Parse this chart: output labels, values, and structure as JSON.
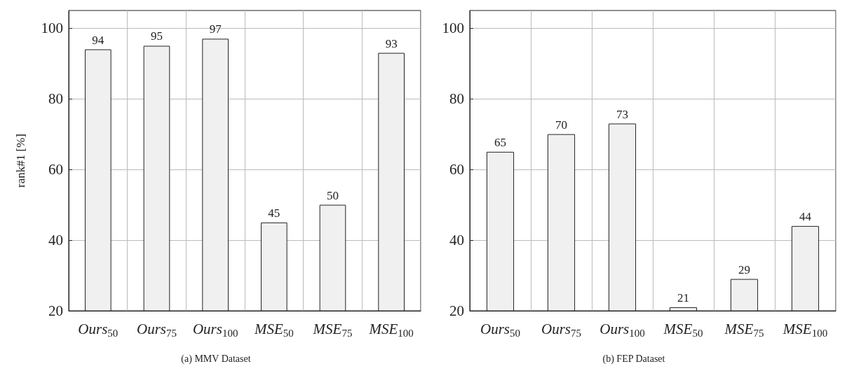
{
  "chart_data": [
    {
      "type": "bar",
      "title": "(a) MMV Dataset",
      "ylabel": "rank#1 [%]",
      "categories": [
        "Ours$_{50}$",
        "Ours$_{75}$",
        "Ours$_{100}$",
        "MSE$_{50}$",
        "MSE$_{75}$",
        "MSE$_{100}$"
      ],
      "values": [
        94,
        95,
        97,
        45,
        50,
        93
      ],
      "color": "#f0f0f0",
      "ylim": [
        20,
        105
      ],
      "yticks": [
        20,
        40,
        60,
        80,
        100
      ],
      "grid": true,
      "data_labels": true
    },
    {
      "type": "bar",
      "title": "(b) FEP Dataset",
      "categories": [
        "Ours$_{50}$",
        "Ours$_{75}$",
        "Ours$_{100}$",
        "MSE$_{50}$",
        "MSE$_{75}$",
        "MSE$_{100}$"
      ],
      "values": [
        65,
        70,
        73,
        21,
        29,
        44
      ],
      "color": "#f0f0f0",
      "ylim": [
        20,
        105
      ],
      "yticks": [
        20,
        40,
        60,
        80,
        100
      ],
      "grid": true,
      "data_labels": true
    }
  ]
}
